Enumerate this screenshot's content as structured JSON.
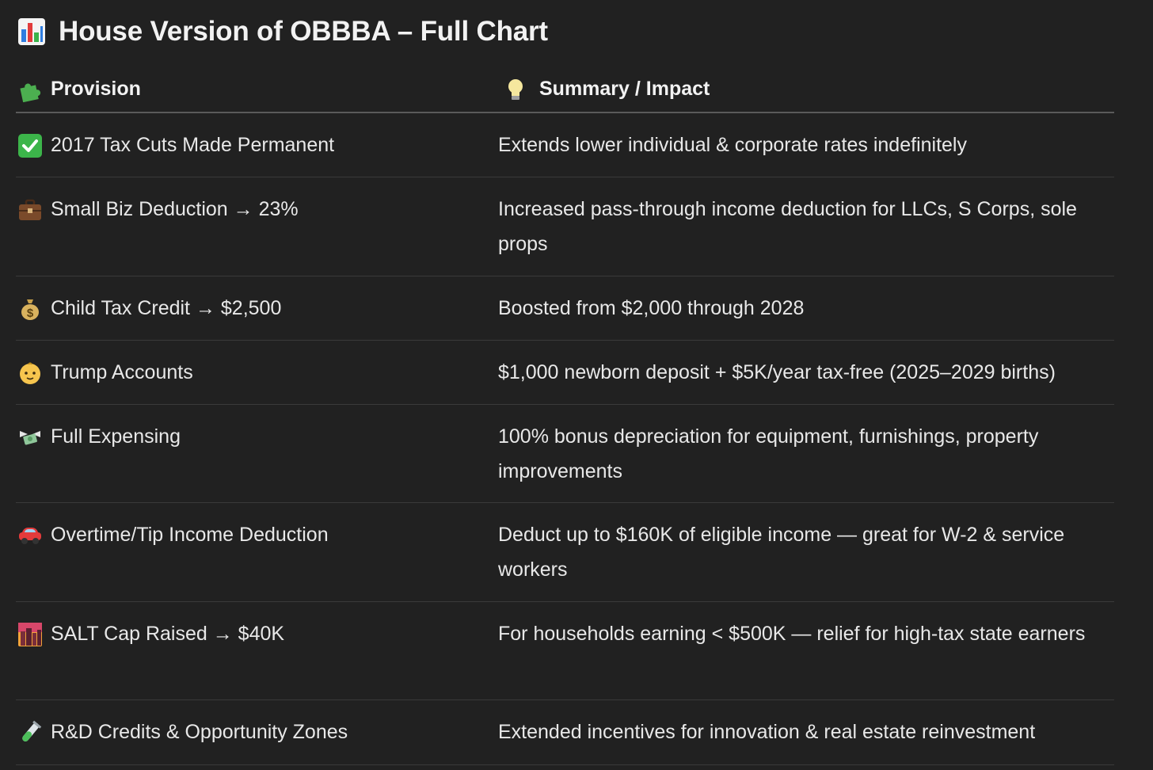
{
  "title": {
    "icon": "bar-chart-icon",
    "text": "House Version of OBBBA – Full Chart"
  },
  "table": {
    "headers": [
      {
        "icon": "puzzle-piece-icon",
        "label": "Provision"
      },
      {
        "icon": "light-bulb-icon",
        "label": "Summary / Impact"
      }
    ],
    "rows": [
      {
        "icon": "check-mark-icon",
        "provision": "2017 Tax Cuts Made Permanent",
        "summary": "Extends lower individual & corporate rates indefinitely"
      },
      {
        "icon": "briefcase-icon",
        "provision": "Small Biz Deduction → 23%",
        "summary": "Increased pass-through income deduction for LLCs, S Corps, sole props"
      },
      {
        "icon": "money-bag-icon",
        "provision": "Child Tax Credit → $2,500",
        "summary": "Boosted from $2,000 through 2028"
      },
      {
        "icon": "baby-face-icon",
        "provision": "Trump Accounts",
        "summary": "$1,000 newborn deposit + $5K/year tax-free (2025–2029 births)"
      },
      {
        "icon": "money-with-wings-icon",
        "provision": "Full Expensing",
        "summary": "100% bonus depreciation for equipment, furnishings, property improvements"
      },
      {
        "icon": "car-icon",
        "provision": "Overtime/Tip Income Deduction",
        "summary": "Deduct up to $160K of eligible income — great for W-2 & service workers"
      },
      {
        "icon": "city-sunset-icon",
        "provision": "SALT Cap Raised → $40K",
        "summary": "For households earning < $500K — relief for high-tax state earners"
      },
      {
        "icon": "test-tube-icon",
        "provision": "R&D Credits & Opportunity Zones",
        "summary": "Extended incentives for innovation & real estate reinvestment"
      }
    ]
  }
}
